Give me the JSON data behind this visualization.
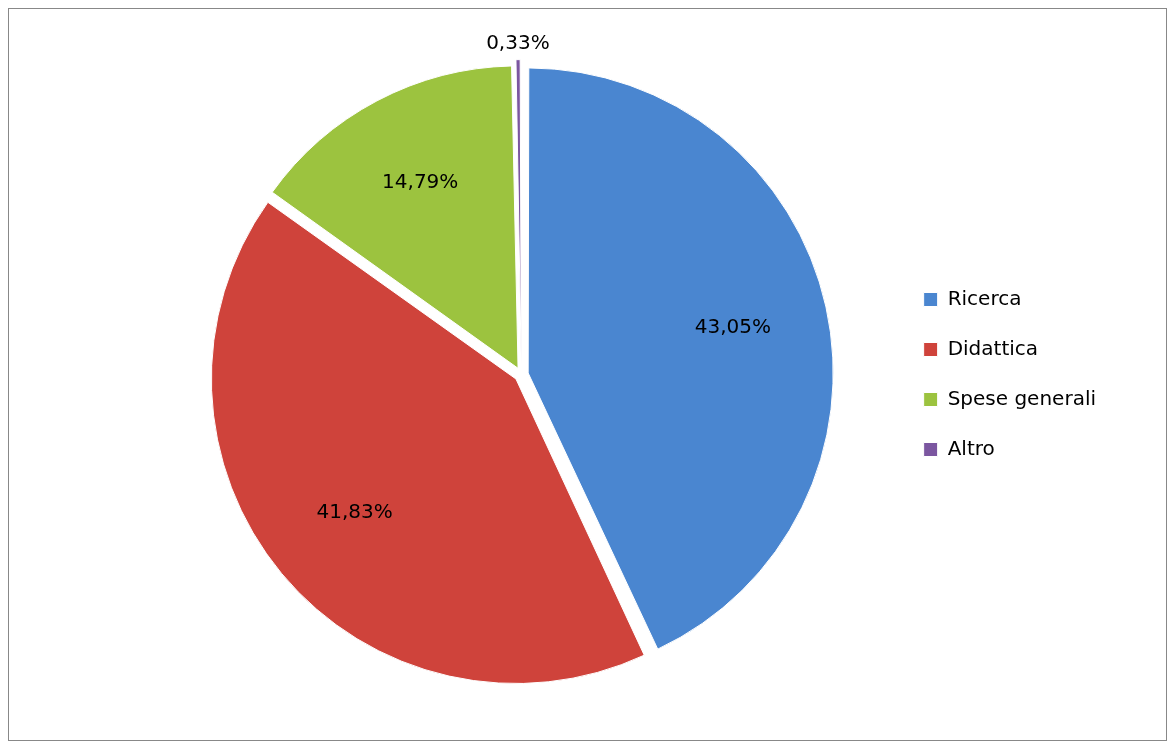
{
  "chart_data": {
    "type": "pie",
    "categories": [
      "Ricerca",
      "Didattica",
      "Spese generali",
      "Altro"
    ],
    "values": [
      43.05,
      41.83,
      14.79,
      0.33
    ],
    "colors": [
      "#4a86d0",
      "#cf433b",
      "#9cc33f",
      "#7b56a0"
    ],
    "value_labels": [
      "43,05%",
      "41,83%",
      "14,79%",
      "0,33%"
    ],
    "legend": "right"
  }
}
